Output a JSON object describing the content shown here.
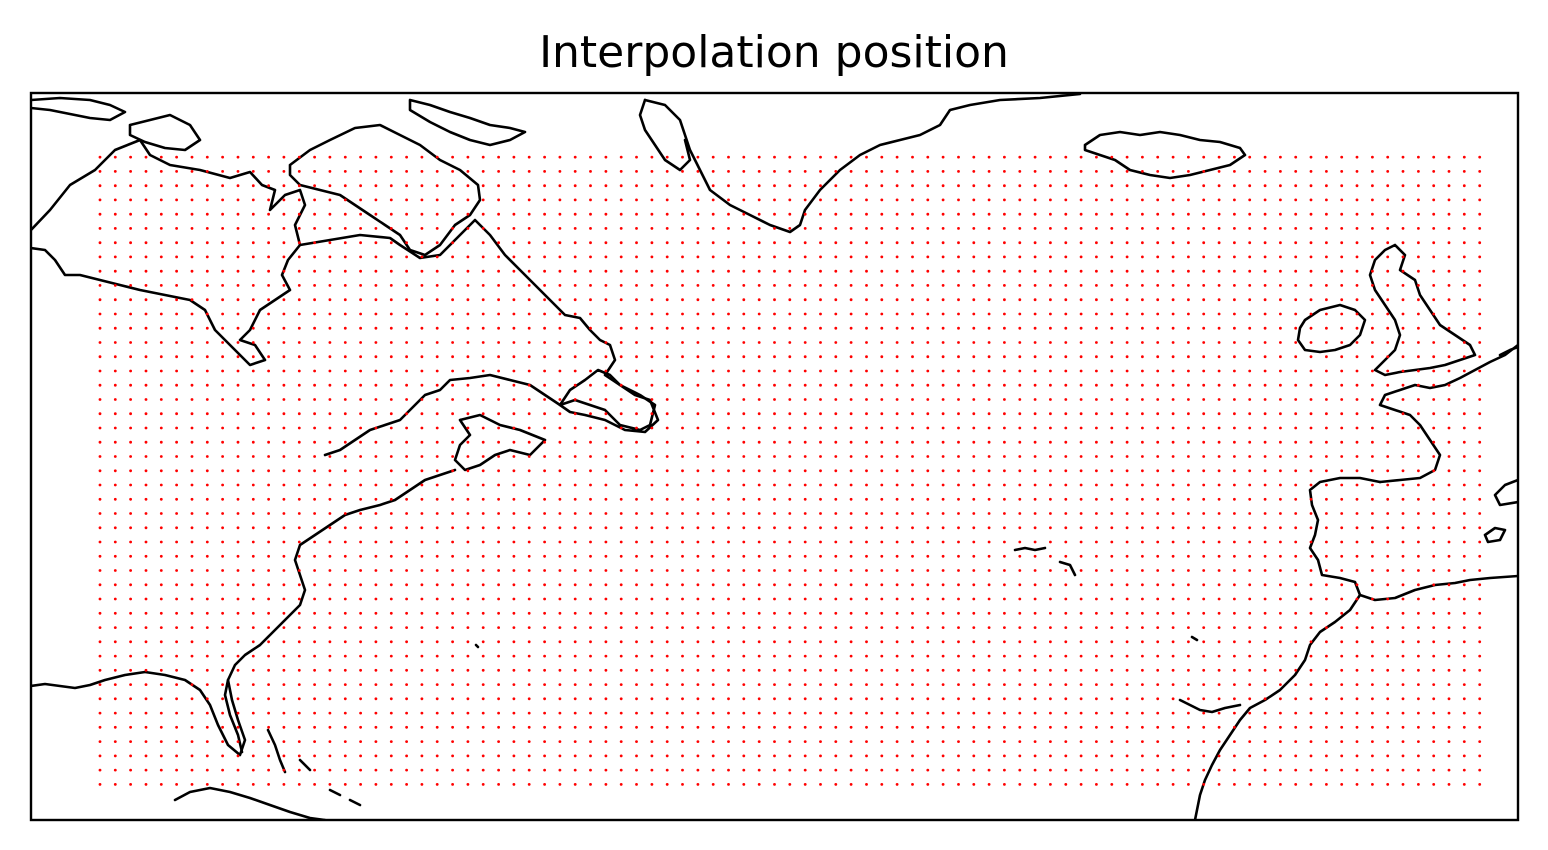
{
  "title": "Interpolation position",
  "colors": {
    "points": "#ff0000",
    "coastline": "#000000",
    "frame": "#000000",
    "background": "#ffffff"
  },
  "map": {
    "extent_lon": [
      -100,
      -3
    ],
    "extent_lat": [
      12,
      63
    ],
    "grid": {
      "lon_start": -95.5,
      "lon_step": 1,
      "lon_count": 91,
      "lat_start": 14.5,
      "lat_step": 1,
      "lat_count": 45
    }
  },
  "chart_data": {
    "type": "scatter",
    "title": "Interpolation position",
    "xlabel": "",
    "ylabel": "",
    "x_range": [
      -100,
      -3
    ],
    "y_range": [
      12,
      63
    ],
    "series": [
      {
        "marker_color": "#ff0000",
        "x_start": -95.5,
        "x_step": 1,
        "x_count": 91,
        "y_start": 14.5,
        "y_step": 1,
        "y_count": 45
      }
    ],
    "grid": false
  }
}
